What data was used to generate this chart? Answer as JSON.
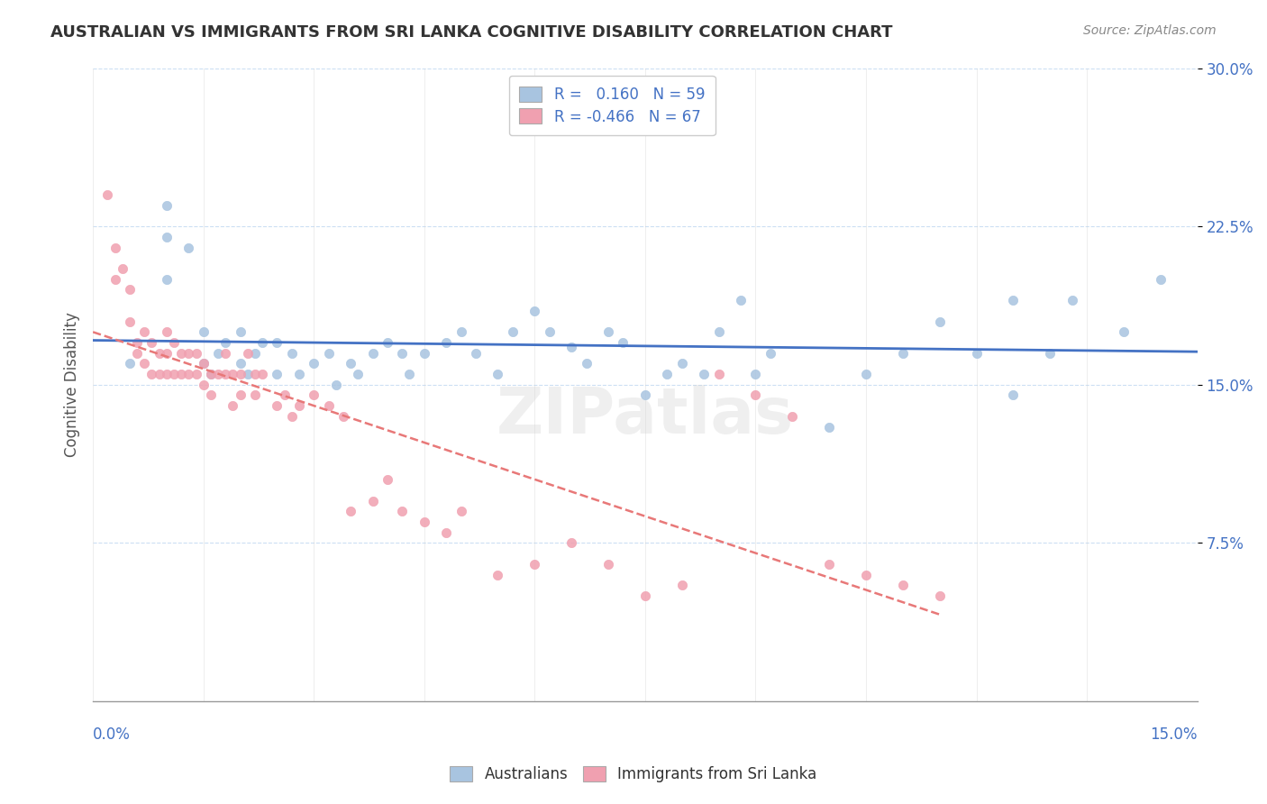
{
  "title": "AUSTRALIAN VS IMMIGRANTS FROM SRI LANKA COGNITIVE DISABILITY CORRELATION CHART",
  "source": "Source: ZipAtlas.com",
  "ylabel": "Cognitive Disability",
  "xmin": 0.0,
  "xmax": 0.15,
  "ymin": 0.0,
  "ymax": 0.3,
  "R_australian": 0.16,
  "N_australian": 59,
  "R_srilanka": -0.466,
  "N_srilanka": 67,
  "color_australian": "#a8c4e0",
  "color_srilanka": "#f0a0b0",
  "line_color_australian": "#4472c4",
  "line_color_srilanka": "#e87878",
  "aus_x": [
    0.005,
    0.01,
    0.01,
    0.01,
    0.013,
    0.015,
    0.015,
    0.016,
    0.017,
    0.018,
    0.02,
    0.02,
    0.021,
    0.022,
    0.023,
    0.025,
    0.025,
    0.027,
    0.028,
    0.03,
    0.032,
    0.033,
    0.035,
    0.036,
    0.038,
    0.04,
    0.042,
    0.043,
    0.045,
    0.048,
    0.05,
    0.052,
    0.055,
    0.057,
    0.06,
    0.062,
    0.065,
    0.067,
    0.07,
    0.072,
    0.075,
    0.078,
    0.08,
    0.083,
    0.085,
    0.088,
    0.09,
    0.092,
    0.1,
    0.105,
    0.11,
    0.115,
    0.12,
    0.125,
    0.125,
    0.13,
    0.133,
    0.14,
    0.145
  ],
  "aus_y": [
    0.16,
    0.22,
    0.235,
    0.2,
    0.215,
    0.175,
    0.16,
    0.155,
    0.165,
    0.17,
    0.175,
    0.16,
    0.155,
    0.165,
    0.17,
    0.17,
    0.155,
    0.165,
    0.155,
    0.16,
    0.165,
    0.15,
    0.16,
    0.155,
    0.165,
    0.17,
    0.165,
    0.155,
    0.165,
    0.17,
    0.175,
    0.165,
    0.155,
    0.175,
    0.185,
    0.175,
    0.168,
    0.16,
    0.175,
    0.17,
    0.145,
    0.155,
    0.16,
    0.155,
    0.175,
    0.19,
    0.155,
    0.165,
    0.13,
    0.155,
    0.165,
    0.18,
    0.165,
    0.19,
    0.145,
    0.165,
    0.19,
    0.175,
    0.2
  ],
  "sl_x": [
    0.002,
    0.003,
    0.003,
    0.004,
    0.005,
    0.005,
    0.006,
    0.006,
    0.007,
    0.007,
    0.008,
    0.008,
    0.009,
    0.009,
    0.01,
    0.01,
    0.01,
    0.011,
    0.011,
    0.012,
    0.012,
    0.013,
    0.013,
    0.014,
    0.014,
    0.015,
    0.015,
    0.016,
    0.016,
    0.017,
    0.018,
    0.018,
    0.019,
    0.019,
    0.02,
    0.02,
    0.021,
    0.022,
    0.022,
    0.023,
    0.025,
    0.026,
    0.027,
    0.028,
    0.03,
    0.032,
    0.034,
    0.035,
    0.038,
    0.04,
    0.042,
    0.045,
    0.048,
    0.05,
    0.055,
    0.06,
    0.065,
    0.07,
    0.075,
    0.08,
    0.085,
    0.09,
    0.095,
    0.1,
    0.105,
    0.11,
    0.115
  ],
  "sl_y": [
    0.24,
    0.215,
    0.2,
    0.205,
    0.195,
    0.18,
    0.17,
    0.165,
    0.175,
    0.16,
    0.17,
    0.155,
    0.165,
    0.155,
    0.175,
    0.165,
    0.155,
    0.17,
    0.155,
    0.165,
    0.155,
    0.165,
    0.155,
    0.165,
    0.155,
    0.16,
    0.15,
    0.155,
    0.145,
    0.155,
    0.165,
    0.155,
    0.155,
    0.14,
    0.155,
    0.145,
    0.165,
    0.155,
    0.145,
    0.155,
    0.14,
    0.145,
    0.135,
    0.14,
    0.145,
    0.14,
    0.135,
    0.09,
    0.095,
    0.105,
    0.09,
    0.085,
    0.08,
    0.09,
    0.06,
    0.065,
    0.075,
    0.065,
    0.05,
    0.055,
    0.155,
    0.145,
    0.135,
    0.065,
    0.06,
    0.055,
    0.05
  ]
}
